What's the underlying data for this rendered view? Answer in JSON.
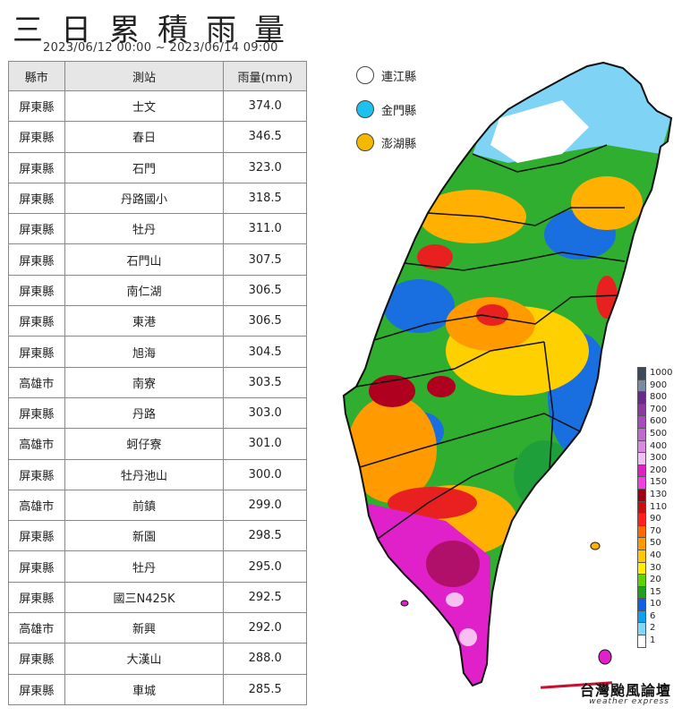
{
  "header": {
    "title": "三日累積雨量",
    "period": "2023/06/12 00:00 ~ 2023/06/14 09:00"
  },
  "table": {
    "columns": [
      "縣市",
      "測站",
      "雨量(mm)"
    ],
    "rows": [
      [
        "屏東縣",
        "士文",
        "374.0"
      ],
      [
        "屏東縣",
        "春日",
        "346.5"
      ],
      [
        "屏東縣",
        "石門",
        "323.0"
      ],
      [
        "屏東縣",
        "丹路國小",
        "318.5"
      ],
      [
        "屏東縣",
        "牡丹",
        "311.0"
      ],
      [
        "屏東縣",
        "石門山",
        "307.5"
      ],
      [
        "屏東縣",
        "南仁湖",
        "306.5"
      ],
      [
        "屏東縣",
        "東港",
        "306.5"
      ],
      [
        "屏東縣",
        "旭海",
        "304.5"
      ],
      [
        "高雄市",
        "南寮",
        "303.5"
      ],
      [
        "屏東縣",
        "丹路",
        "303.0"
      ],
      [
        "高雄市",
        "蚵仔寮",
        "301.0"
      ],
      [
        "屏東縣",
        "牡丹池山",
        "300.0"
      ],
      [
        "高雄市",
        "前鎮",
        "299.0"
      ],
      [
        "屏東縣",
        "新園",
        "298.5"
      ],
      [
        "屏東縣",
        "牡丹",
        "295.0"
      ],
      [
        "屏東縣",
        "國三N425K",
        "292.5"
      ],
      [
        "高雄市",
        "新興",
        "292.0"
      ],
      [
        "屏東縣",
        "大漢山",
        "288.0"
      ],
      [
        "屏東縣",
        "車城",
        "285.5"
      ]
    ]
  },
  "islands_legend": [
    {
      "label": "連江縣",
      "color": "#ffffff"
    },
    {
      "label": "金門縣",
      "color": "#1ec0f0"
    },
    {
      "label": "澎湖縣",
      "color": "#f5b800"
    }
  ],
  "scale": {
    "labels": [
      "1000",
      "900",
      "800",
      "700",
      "600",
      "500",
      "400",
      "300",
      "200",
      "150",
      "130",
      "110",
      "90",
      "70",
      "50",
      "40",
      "30",
      "20",
      "15",
      "10",
      "6",
      "2",
      "1"
    ],
    "colors": [
      "#3a4a5a",
      "#7a8aa0",
      "#6a2a8a",
      "#8a3aa0",
      "#a84ac0",
      "#c06ad0",
      "#d88ae0",
      "#f0c0f0",
      "#e020c0",
      "#f040e0",
      "#a00010",
      "#c81010",
      "#ff2020",
      "#ff6a00",
      "#ff9a00",
      "#ffc800",
      "#fff000",
      "#60d000",
      "#20a020",
      "#1060e0",
      "#10a0f0",
      "#80d8f8",
      "#ffffff"
    ]
  },
  "brand": {
    "name": "台灣颱風論壇",
    "english": "weather express"
  }
}
